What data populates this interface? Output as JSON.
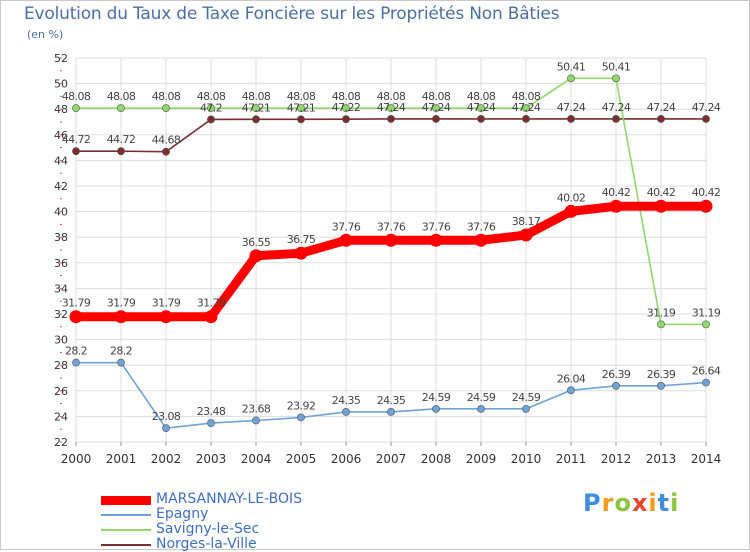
{
  "title": "Evolution du Taux de Taxe Foncière sur les Propriétés Non Bâties",
  "unit_label": "(en %)",
  "logo_text": "Proxiti",
  "chart_data": {
    "type": "line",
    "x": [
      "2000",
      "2001",
      "2002",
      "2003",
      "2004",
      "2005",
      "2006",
      "2007",
      "2008",
      "2009",
      "2010",
      "2011",
      "2012",
      "2013",
      "2014"
    ],
    "ylim": [
      22,
      52
    ],
    "yticks": [
      22,
      24,
      26,
      28,
      30,
      32,
      34,
      36,
      38,
      40,
      42,
      44,
      46,
      48,
      50,
      52
    ],
    "grid": true,
    "legend_position": "bottom-left",
    "series": [
      {
        "name": "MARSANNAY-LE-BOIS",
        "color": "#ff0000",
        "values": [
          31.79,
          31.79,
          31.79,
          31.79,
          36.55,
          36.75,
          37.76,
          37.76,
          37.76,
          37.76,
          38.17,
          40.02,
          40.42,
          40.42,
          40.42
        ],
        "labels": [
          "31.79",
          "31.79",
          "31.79",
          "31.79",
          "36.55",
          "36.75",
          "37.76",
          "37.76",
          "37.76",
          "37.76",
          "38.17",
          "40.02",
          "40.42",
          "40.42",
          "40.42"
        ]
      },
      {
        "name": "Epagny",
        "color": "#6fa3d8",
        "values": [
          28.2,
          28.2,
          23.08,
          23.48,
          23.68,
          23.92,
          24.35,
          24.35,
          24.59,
          24.59,
          24.59,
          26.04,
          26.39,
          26.39,
          26.64
        ],
        "labels": [
          "28.2",
          "28.2",
          "23.08",
          "23.48",
          "23.68",
          "23.92",
          "24.35",
          "24.35",
          "24.59",
          "24.59",
          "24.59",
          "26.04",
          "26.39",
          "26.39",
          "26.64"
        ]
      },
      {
        "name": "Savigny-le-Sec",
        "color": "#8fd86a",
        "values": [
          48.08,
          48.08,
          48.08,
          48.08,
          48.08,
          48.08,
          48.08,
          48.08,
          48.08,
          48.08,
          48.08,
          50.41,
          50.41,
          31.19,
          31.19
        ],
        "labels": [
          "48.08",
          "48.08",
          "48.08",
          "48.08",
          "48.08",
          "48.08",
          "48.08",
          "48.08",
          "48.08",
          "48.08",
          "48.08",
          "50.41",
          "50.41",
          "31.19",
          "31.19"
        ]
      },
      {
        "name": "Norges-la-Ville",
        "color": "#7a2e30",
        "values": [
          44.72,
          44.72,
          44.68,
          47.2,
          47.21,
          47.21,
          47.22,
          47.24,
          47.24,
          47.24,
          47.24,
          47.24,
          47.24,
          47.24,
          47.24
        ],
        "labels": [
          "44.72",
          "44.72",
          "44.68",
          "47.2",
          "47.21",
          "47.21",
          "47.22",
          "47.24",
          "47.24",
          "47.24",
          "47.24",
          "47.24",
          "47.24",
          "47.24",
          "47.24"
        ]
      }
    ]
  }
}
